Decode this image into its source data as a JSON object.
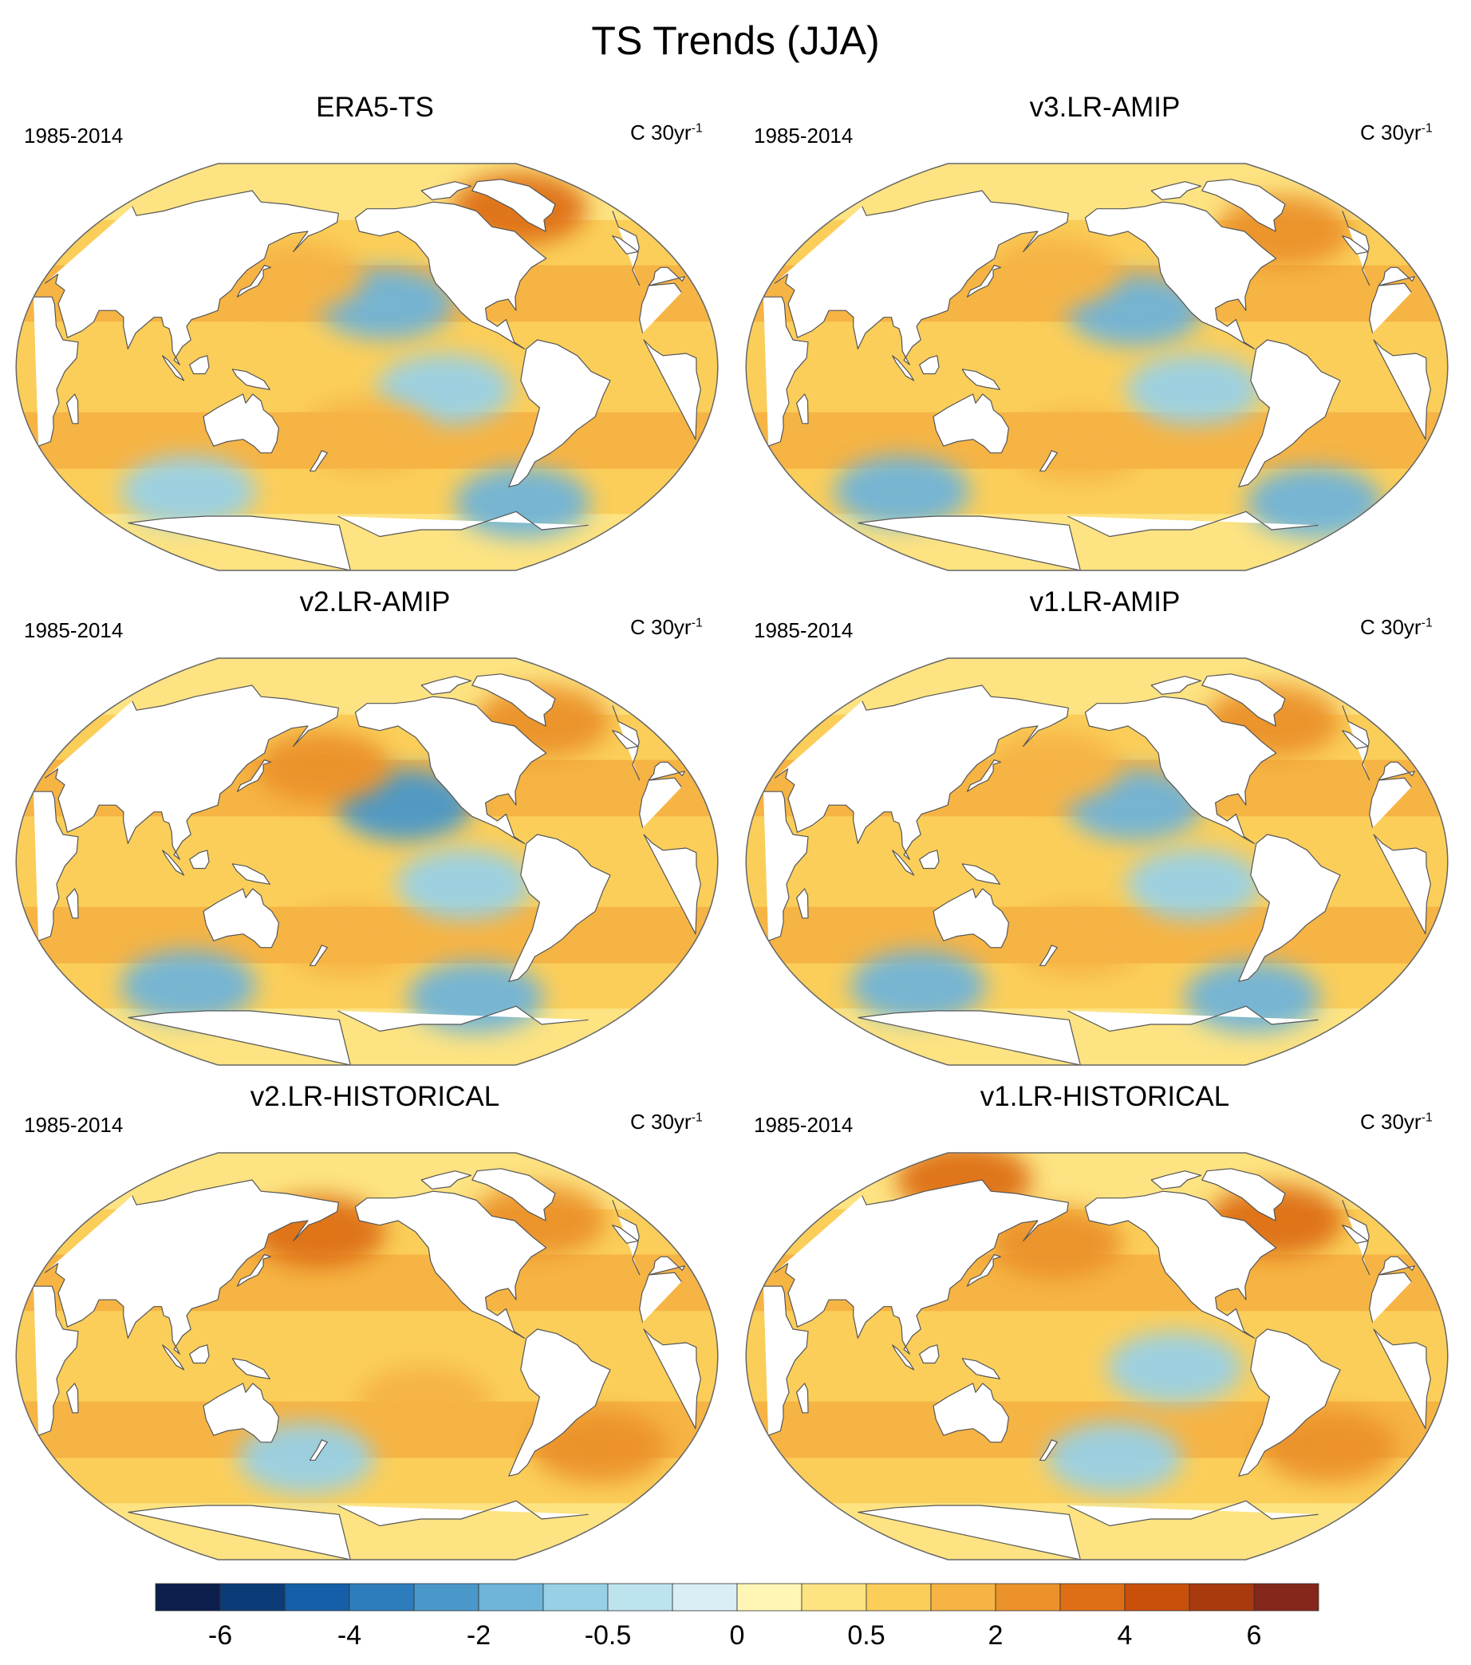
{
  "figure": {
    "title": "TS Trends (JJA)"
  },
  "panels": [
    {
      "title": "ERA5-TS",
      "period": "1985-2014",
      "units": "C 30yr",
      "units_exp": "-1",
      "anoms": [
        {
          "lon": -150,
          "lat": 28,
          "v": -1.2
        },
        {
          "lon": -120,
          "lat": -10,
          "v": -0.8
        },
        {
          "lon": -60,
          "lat": -60,
          "v": -1.5
        },
        {
          "lon": 90,
          "lat": -55,
          "v": -0.8
        },
        {
          "lon": -50,
          "lat": 70,
          "v": 3.5
        },
        {
          "lon": 160,
          "lat": 40,
          "v": 1.8
        },
        {
          "lon": -160,
          "lat": -30,
          "v": 1.4
        }
      ]
    },
    {
      "title": "v3.LR-AMIP",
      "period": "1985-2014",
      "units": "C 30yr",
      "units_exp": "-1",
      "anoms": [
        {
          "lon": -140,
          "lat": 25,
          "v": -1.8
        },
        {
          "lon": -110,
          "lat": -10,
          "v": -0.8
        },
        {
          "lon": -20,
          "lat": -60,
          "v": -1.5
        },
        {
          "lon": 80,
          "lat": -55,
          "v": -1.0
        },
        {
          "lon": -40,
          "lat": 60,
          "v": 2.5
        },
        {
          "lon": 175,
          "lat": 42,
          "v": 1.6
        },
        {
          "lon": -170,
          "lat": -35,
          "v": 1.4
        }
      ]
    },
    {
      "title": "v2.LR-AMIP",
      "period": "1985-2014",
      "units": "C 30yr",
      "units_exp": "-1",
      "anoms": [
        {
          "lon": -140,
          "lat": 25,
          "v": -2.2
        },
        {
          "lon": -110,
          "lat": -10,
          "v": -0.9
        },
        {
          "lon": -90,
          "lat": -60,
          "v": -1.8
        },
        {
          "lon": 90,
          "lat": -55,
          "v": -1.3
        },
        {
          "lon": -45,
          "lat": 62,
          "v": 3.0
        },
        {
          "lon": 175,
          "lat": 42,
          "v": 2.2
        },
        {
          "lon": -170,
          "lat": -35,
          "v": 1.5
        }
      ]
    },
    {
      "title": "v1.LR-AMIP",
      "period": "1985-2014",
      "units": "C 30yr",
      "units_exp": "-1",
      "anoms": [
        {
          "lon": -140,
          "lat": 25,
          "v": -1.9
        },
        {
          "lon": -110,
          "lat": -10,
          "v": -0.9
        },
        {
          "lon": -60,
          "lat": -60,
          "v": -1.6
        },
        {
          "lon": 90,
          "lat": -55,
          "v": -1.1
        },
        {
          "lon": -45,
          "lat": 62,
          "v": 2.8
        },
        {
          "lon": 175,
          "lat": 42,
          "v": 2.0
        },
        {
          "lon": -170,
          "lat": -35,
          "v": 1.5
        }
      ]
    },
    {
      "title": "v2.LR-HISTORICAL",
      "period": "1985-2014",
      "units": "C 30yr",
      "units_exp": "-1",
      "anoms": [
        {
          "lon": 170,
          "lat": 55,
          "v": 3.2
        },
        {
          "lon": -50,
          "lat": 60,
          "v": 2.8
        },
        {
          "lon": 165,
          "lat": -45,
          "v": -0.8
        },
        {
          "lon": -30,
          "lat": -40,
          "v": 2.2
        },
        {
          "lon": -130,
          "lat": -20,
          "v": 1.6
        }
      ]
    },
    {
      "title": "v1.LR-HISTORICAL",
      "period": "1985-2014",
      "units": "C 30yr",
      "units_exp": "-1",
      "anoms": [
        {
          "lon": 175,
          "lat": 50,
          "v": 2.6
        },
        {
          "lon": -45,
          "lat": 60,
          "v": 3.8
        },
        {
          "lon": -120,
          "lat": -5,
          "v": -0.8
        },
        {
          "lon": 90,
          "lat": 78,
          "v": 3.8
        },
        {
          "lon": -30,
          "lat": -40,
          "v": 2.4
        },
        {
          "lon": -150,
          "lat": -45,
          "v": -0.5
        }
      ]
    }
  ],
  "colorbar": {
    "colors": [
      "#0c1f4c",
      "#0c3c78",
      "#155fa8",
      "#2d7dbc",
      "#4a98ca",
      "#6fb4d9",
      "#98d0e6",
      "#bde3ee",
      "#d9eef5",
      "#fff6b6",
      "#fde382",
      "#fbce5a",
      "#f6b444",
      "#eb922b",
      "#de6f16",
      "#c9500a",
      "#a83a0e",
      "#84261a"
    ],
    "tick_labels": [
      "-6",
      "-4",
      "-2",
      "-0.5",
      "0",
      "0.5",
      "2",
      "4",
      "6"
    ],
    "tick_index": [
      1,
      3,
      5,
      7,
      9,
      11,
      13,
      15,
      17
    ]
  },
  "colors": {
    "land": "#ffffff",
    "coast": "#555555",
    "outline": "#666666"
  }
}
